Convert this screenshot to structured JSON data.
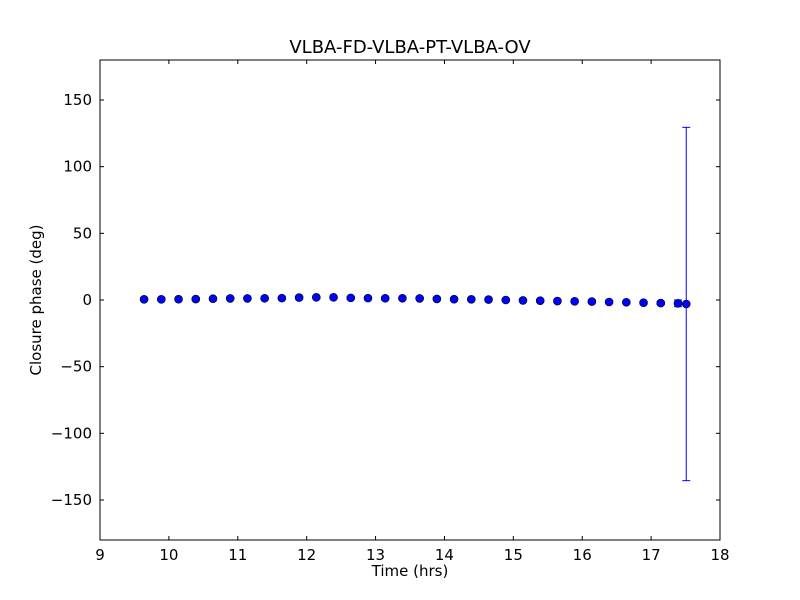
{
  "chart_data": {
    "type": "scatter",
    "title": "VLBA-FD-VLBA-PT-VLBA-OV",
    "xlabel": "Time (hrs)",
    "ylabel": "Closure phase (deg)",
    "xlim": [
      9,
      18
    ],
    "ylim": [
      -180,
      180
    ],
    "xticks": [
      9,
      10,
      11,
      12,
      13,
      14,
      15,
      16,
      17,
      18
    ],
    "yticks": [
      -150,
      -100,
      -50,
      0,
      50,
      100,
      150
    ],
    "ytick_labels": [
      "−150",
      "−100",
      "−50",
      "0",
      "50",
      "100",
      "150"
    ],
    "grid": false,
    "marker_color": "#0000ff",
    "errorbar_color": "#0000ff",
    "x": [
      9.64,
      9.89,
      10.14,
      10.39,
      10.64,
      10.89,
      11.14,
      11.39,
      11.64,
      11.89,
      12.14,
      12.39,
      12.64,
      12.89,
      13.14,
      13.39,
      13.64,
      13.89,
      14.14,
      14.39,
      14.64,
      14.89,
      15.14,
      15.39,
      15.64,
      15.89,
      16.14,
      16.39,
      16.64,
      16.89,
      17.14,
      17.39,
      17.51
    ],
    "y": [
      0.5,
      0.5,
      0.6,
      0.7,
      1.0,
      1.2,
      1.2,
      1.3,
      1.4,
      1.8,
      2.0,
      2.0,
      1.6,
      1.4,
      1.3,
      1.3,
      1.2,
      0.8,
      0.6,
      0.5,
      0.3,
      0.0,
      -0.3,
      -0.5,
      -0.8,
      -1.0,
      -1.2,
      -1.5,
      -1.7,
      -2.0,
      -2.3,
      -2.5,
      -3.0
    ],
    "yerr": [
      0.8,
      0.8,
      0.8,
      0.8,
      0.8,
      0.8,
      0.8,
      0.8,
      0.8,
      0.8,
      0.8,
      0.8,
      0.8,
      0.8,
      0.8,
      0.8,
      0.8,
      0.8,
      0.8,
      0.8,
      0.8,
      0.8,
      0.8,
      0.8,
      0.8,
      0.8,
      0.8,
      0.8,
      0.8,
      0.8,
      1.0,
      2.5,
      132.5
    ]
  }
}
